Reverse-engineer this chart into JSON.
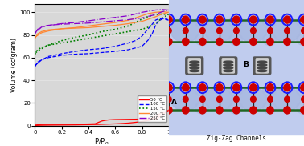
{
  "ylabel": "Volume (cc/gram)",
  "xlim": [
    0,
    1.0
  ],
  "ylim": [
    0,
    107
  ],
  "yticks": [
    0,
    20,
    40,
    60,
    80,
    100
  ],
  "xticks": [
    0,
    0.2,
    0.4,
    0.6,
    0.8,
    1
  ],
  "xtick_labels": [
    "0",
    "0.2",
    "0.4",
    "0.6",
    "0.8",
    "1"
  ],
  "bg_color": "#d8d8d8",
  "curves": {
    "50C_ads": {
      "color": "red",
      "style": "-",
      "lw": 0.9,
      "x": [
        0.0,
        0.01,
        0.02,
        0.05,
        0.1,
        0.2,
        0.3,
        0.4,
        0.45,
        0.5,
        0.52,
        0.55,
        0.58,
        0.6,
        0.65,
        0.7,
        0.75,
        0.8,
        0.85,
        0.88,
        0.9,
        0.92,
        0.95,
        0.97,
        1.0
      ],
      "y": [
        0.3,
        0.5,
        0.7,
        0.9,
        1.0,
        1.1,
        1.2,
        1.4,
        1.6,
        4.0,
        4.5,
        5.0,
        5.2,
        5.3,
        5.4,
        5.5,
        5.6,
        5.8,
        6.0,
        6.5,
        8.0,
        9.5,
        11.0,
        12.0,
        13.5
      ]
    },
    "50C_des": {
      "color": "red",
      "style": "-",
      "lw": 0.9,
      "x": [
        1.0,
        0.97,
        0.95,
        0.92,
        0.9,
        0.88,
        0.85,
        0.8,
        0.75,
        0.7,
        0.65,
        0.6,
        0.55,
        0.5,
        0.45,
        0.4,
        0.3,
        0.2,
        0.1,
        0.05,
        0.02,
        0.0
      ],
      "y": [
        13.5,
        11.0,
        9.0,
        7.0,
        5.8,
        5.2,
        4.5,
        3.5,
        2.8,
        2.2,
        1.8,
        1.5,
        1.3,
        1.1,
        0.9,
        0.8,
        0.6,
        0.5,
        0.4,
        0.3,
        0.2,
        0.1
      ]
    },
    "100C_ads": {
      "color": "blue",
      "style": "--",
      "lw": 0.9,
      "x": [
        0.0,
        0.01,
        0.02,
        0.05,
        0.1,
        0.2,
        0.3,
        0.4,
        0.5,
        0.6,
        0.7,
        0.8,
        0.85,
        0.88,
        0.9,
        0.92,
        0.95,
        0.97,
        1.0
      ],
      "y": [
        52.0,
        54.0,
        56.0,
        58.0,
        60.0,
        62.0,
        63.0,
        63.5,
        64.5,
        65.5,
        67.0,
        70.0,
        76.0,
        82.0,
        88.0,
        92.0,
        94.0,
        95.0,
        93.0
      ]
    },
    "100C_des": {
      "color": "blue",
      "style": "--",
      "lw": 0.9,
      "x": [
        1.0,
        0.97,
        0.95,
        0.92,
        0.9,
        0.88,
        0.85,
        0.8,
        0.75,
        0.7,
        0.6,
        0.5,
        0.4,
        0.3,
        0.2,
        0.1,
        0.05,
        0.0
      ],
      "y": [
        93.0,
        94.0,
        94.5,
        94.0,
        93.0,
        90.0,
        86.0,
        79.0,
        75.0,
        73.0,
        70.0,
        68.0,
        67.0,
        65.5,
        63.5,
        61.0,
        58.0,
        53.0
      ]
    },
    "150C_ads": {
      "color": "green",
      "style": ":",
      "lw": 1.2,
      "x": [
        0.0,
        0.01,
        0.02,
        0.05,
        0.1,
        0.2,
        0.3,
        0.4,
        0.5,
        0.6,
        0.7,
        0.8,
        0.85,
        0.9,
        0.95,
        1.0
      ],
      "y": [
        63.0,
        65.0,
        67.0,
        69.0,
        71.0,
        73.0,
        75.0,
        77.0,
        79.0,
        81.0,
        83.0,
        85.0,
        87.0,
        90.0,
        95.0,
        98.0
      ]
    },
    "150C_des": {
      "color": "green",
      "style": ":",
      "lw": 1.2,
      "x": [
        1.0,
        0.95,
        0.9,
        0.85,
        0.8,
        0.75,
        0.7,
        0.6,
        0.5,
        0.4,
        0.3,
        0.2,
        0.1,
        0.05,
        0.0
      ],
      "y": [
        98.0,
        98.5,
        98.0,
        96.5,
        94.0,
        91.0,
        88.0,
        85.0,
        83.0,
        80.0,
        78.0,
        75.0,
        71.0,
        68.0,
        64.0
      ]
    },
    "200C_ads": {
      "color": "#ff8833",
      "style": "-",
      "lw": 0.9,
      "x": [
        0.0,
        0.01,
        0.02,
        0.05,
        0.1,
        0.2,
        0.3,
        0.4,
        0.5,
        0.6,
        0.7,
        0.8,
        0.85,
        0.9,
        0.95,
        1.0
      ],
      "y": [
        77.0,
        79.0,
        81.0,
        83.0,
        84.5,
        85.5,
        86.0,
        86.5,
        87.5,
        88.5,
        90.0,
        92.0,
        94.0,
        96.0,
        98.5,
        100.0
      ]
    },
    "200C_des": {
      "color": "#ff8833",
      "style": "-",
      "lw": 0.9,
      "x": [
        1.0,
        0.95,
        0.9,
        0.85,
        0.8,
        0.75,
        0.7,
        0.6,
        0.5,
        0.4,
        0.3,
        0.2,
        0.1,
        0.05,
        0.0
      ],
      "y": [
        100.0,
        100.5,
        100.0,
        99.0,
        97.0,
        95.0,
        93.0,
        91.0,
        89.5,
        88.0,
        86.5,
        85.5,
        83.5,
        82.0,
        78.0
      ]
    },
    "250C_ads": {
      "color": "#8800cc",
      "style": "-.",
      "lw": 0.9,
      "x": [
        0.0,
        0.01,
        0.02,
        0.05,
        0.1,
        0.2,
        0.3,
        0.4,
        0.5,
        0.6,
        0.7,
        0.8,
        0.85,
        0.9,
        0.95,
        1.0
      ],
      "y": [
        81.0,
        83.0,
        85.0,
        87.0,
        88.5,
        89.5,
        90.0,
        90.5,
        91.5,
        92.5,
        93.5,
        95.0,
        96.5,
        98.0,
        100.5,
        102.0
      ]
    },
    "250C_des": {
      "color": "#8800cc",
      "style": "-.",
      "lw": 0.9,
      "x": [
        1.0,
        0.95,
        0.9,
        0.85,
        0.8,
        0.75,
        0.7,
        0.6,
        0.5,
        0.4,
        0.3,
        0.2,
        0.1,
        0.05,
        0.0
      ],
      "y": [
        102.0,
        102.5,
        102.0,
        101.0,
        100.0,
        98.5,
        97.0,
        95.5,
        94.0,
        92.5,
        91.0,
        90.0,
        88.5,
        87.0,
        82.0
      ]
    }
  },
  "mof_bg": "#c0ccee",
  "channel_fill": "#a8b8e0",
  "blue_node": "#1a1aff",
  "red_atom": "#cc0000",
  "green_stick": "#226622",
  "dark_node": "#222222",
  "gray_tube": "#999999"
}
